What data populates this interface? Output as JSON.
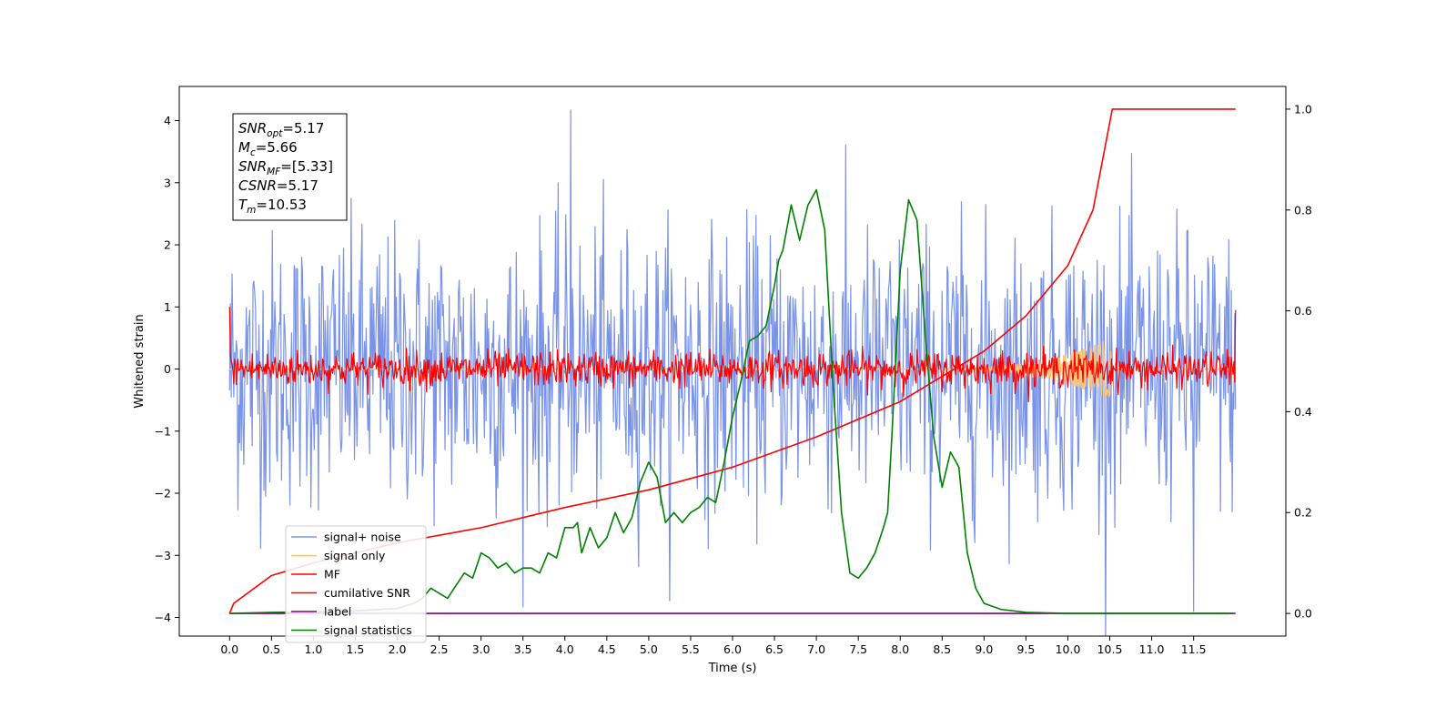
{
  "chart_data": {
    "type": "line",
    "xlabel": "Time (s)",
    "ylabel": "Whitened strain",
    "x_ticks": [
      "0.0",
      "0.5",
      "1.0",
      "1.5",
      "2.0",
      "2.5",
      "3.0",
      "3.5",
      "4.0",
      "4.5",
      "5.0",
      "5.5",
      "6.0",
      "6.5",
      "7.0",
      "7.5",
      "8.0",
      "8.5",
      "9.0",
      "9.5",
      "10.0",
      "10.5",
      "11.0",
      "11.5"
    ],
    "y_ticks": [
      "4",
      "3",
      "2",
      "1",
      "0",
      "−1",
      "−2",
      "−3",
      "−4"
    ],
    "y2_ticks": [
      "1.0",
      "0.8",
      "0.6",
      "0.4",
      "0.2",
      "0.0"
    ],
    "xlim": [
      -0.6,
      12.6
    ],
    "ylim": [
      -4.3,
      4.55
    ],
    "y2lim": [
      -0.045,
      1.045
    ],
    "x_range": [
      0,
      12.0
    ],
    "sample_count": 1200,
    "legend_position": "lower-left",
    "annotation": [
      {
        "base": "SNR",
        "sub": "opt",
        "value": "=5.17"
      },
      {
        "base": "M",
        "sub": "c",
        "value": "=5.66"
      },
      {
        "base": "SNR",
        "sub": "MF",
        "value": "=[5.33]"
      },
      {
        "base": "CSNR",
        "sub": "",
        "value": "=5.17"
      },
      {
        "base": "T",
        "sub": "m",
        "value": "=10.53"
      }
    ],
    "series": [
      {
        "name": "signal+ noise",
        "color": "#7a93e8",
        "axis": "left",
        "kind": "noise",
        "amplitude_sd": 1.1,
        "peaks": [
          [
            4.07,
            4.17
          ],
          [
            11.5,
            -3.9
          ]
        ]
      },
      {
        "name": "signal only",
        "color": "#f5c67a",
        "axis": "left",
        "kind": "chirp",
        "merger_time": 10.53,
        "peak": 0.5
      },
      {
        "name": "MF",
        "color": "#ff0000",
        "axis": "left",
        "kind": "noise",
        "amplitude_sd": 0.14,
        "edges": [
          1.0,
          0.95
        ]
      },
      {
        "name": "cumilative SNR",
        "color": "#ff0000",
        "axis": "right",
        "x": [
          0.0,
          0.05,
          0.5,
          1.0,
          2.0,
          3.0,
          4.0,
          5.0,
          6.0,
          7.0,
          8.0,
          9.0,
          9.5,
          10.0,
          10.3,
          10.53,
          12.0
        ],
        "values": [
          0.0,
          0.02,
          0.075,
          0.1,
          0.14,
          0.17,
          0.21,
          0.245,
          0.29,
          0.35,
          0.42,
          0.52,
          0.59,
          0.69,
          0.8,
          1.0,
          1.0
        ]
      },
      {
        "name": "label",
        "color": "#800080",
        "axis": "right",
        "x": [
          0.0,
          12.0
        ],
        "values": [
          0.0,
          0.0
        ]
      },
      {
        "name": "signal statistics",
        "color": "#008000",
        "axis": "right",
        "x": [
          0.0,
          0.5,
          1.0,
          1.5,
          2.0,
          2.2,
          2.3,
          2.4,
          2.5,
          2.6,
          2.8,
          2.9,
          3.0,
          3.1,
          3.2,
          3.3,
          3.4,
          3.5,
          3.6,
          3.7,
          3.8,
          3.9,
          4.0,
          4.1,
          4.15,
          4.2,
          4.3,
          4.4,
          4.5,
          4.6,
          4.7,
          4.8,
          4.9,
          5.0,
          5.1,
          5.2,
          5.3,
          5.4,
          5.5,
          5.6,
          5.7,
          5.8,
          5.9,
          6.0,
          6.1,
          6.2,
          6.3,
          6.4,
          6.5,
          6.55,
          6.6,
          6.7,
          6.8,
          6.9,
          7.0,
          7.1,
          7.2,
          7.3,
          7.4,
          7.5,
          7.6,
          7.7,
          7.8,
          7.85,
          7.9,
          8.0,
          8.1,
          8.2,
          8.3,
          8.4,
          8.5,
          8.6,
          8.7,
          8.8,
          8.9,
          9.0,
          9.2,
          9.5,
          10.0,
          11.0,
          11.95
        ],
        "values": [
          0.0,
          0.002,
          0.003,
          0.005,
          0.01,
          0.02,
          0.03,
          0.05,
          0.04,
          0.03,
          0.08,
          0.07,
          0.12,
          0.11,
          0.09,
          0.1,
          0.08,
          0.09,
          0.09,
          0.08,
          0.12,
          0.11,
          0.17,
          0.17,
          0.18,
          0.12,
          0.17,
          0.13,
          0.15,
          0.2,
          0.16,
          0.19,
          0.26,
          0.3,
          0.27,
          0.18,
          0.2,
          0.18,
          0.2,
          0.21,
          0.23,
          0.22,
          0.3,
          0.39,
          0.46,
          0.54,
          0.55,
          0.57,
          0.65,
          0.7,
          0.72,
          0.81,
          0.74,
          0.81,
          0.84,
          0.76,
          0.45,
          0.2,
          0.08,
          0.07,
          0.09,
          0.12,
          0.17,
          0.2,
          0.35,
          0.68,
          0.82,
          0.78,
          0.55,
          0.35,
          0.25,
          0.32,
          0.29,
          0.12,
          0.05,
          0.02,
          0.008,
          0.002,
          0.0,
          0.0,
          0.0
        ]
      }
    ]
  }
}
